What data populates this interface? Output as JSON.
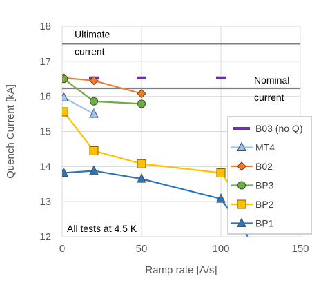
{
  "chart_data": {
    "type": "line",
    "title": "",
    "xlabel": "Ramp rate [A/s]",
    "ylabel": "Quench Current [kA]",
    "xlim": [
      0,
      150
    ],
    "ylim": [
      12,
      18
    ],
    "xticks": [
      "0",
      "50",
      "100",
      "150"
    ],
    "yticks": [
      "12",
      "13",
      "14",
      "15",
      "16",
      "17",
      "18"
    ],
    "grid": "vertical and horizontal",
    "legend_position": "right",
    "reference_lines": [
      {
        "name": "ultimate",
        "y": 17.5,
        "label_lines": [
          "Ultimate",
          "current"
        ],
        "color": "#7f7f7f"
      },
      {
        "name": "nominal",
        "y": 16.23,
        "label_lines": [
          "Nominal",
          "current"
        ],
        "color": "#7f7f7f"
      }
    ],
    "annotation": "All tests at 4.5 K",
    "series": [
      {
        "name": "B03 (no Q)",
        "color": "#7030a0",
        "marker": "dash",
        "dashed": true,
        "x": [
          20,
          50,
          100
        ],
        "y": [
          16.53,
          16.53,
          16.53
        ]
      },
      {
        "name": "MT4",
        "color": "#9dc3e6",
        "marker": "triangle",
        "x": [
          1,
          20
        ],
        "y": [
          15.97,
          15.5
        ]
      },
      {
        "name": "B02",
        "color": "#ed7d31",
        "marker": "diamond",
        "x": [
          1,
          20,
          50
        ],
        "y": [
          16.53,
          16.45,
          16.08
        ]
      },
      {
        "name": "BP3",
        "color": "#70ad47",
        "marker": "circle",
        "x": [
          1,
          20,
          50
        ],
        "y": [
          16.5,
          15.86,
          15.79
        ]
      },
      {
        "name": "BP2",
        "color": "#ffc000",
        "marker": "square",
        "x": [
          1,
          20,
          50,
          100,
          125
        ],
        "y": [
          15.56,
          14.45,
          14.08,
          13.82,
          12.3
        ]
      },
      {
        "name": "BP1",
        "color": "#2e75b6",
        "marker": "triangle",
        "x": [
          1,
          20,
          50,
          100,
          125
        ],
        "y": [
          13.82,
          13.88,
          13.65,
          13.08,
          11.5
        ]
      }
    ]
  }
}
